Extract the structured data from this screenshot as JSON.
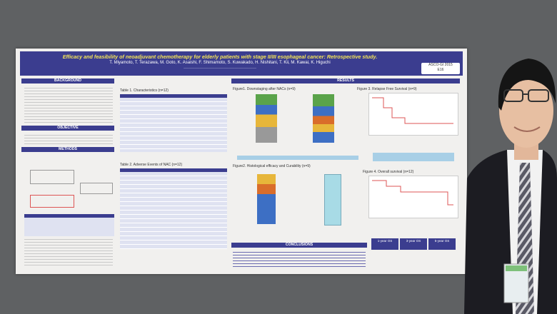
{
  "poster": {
    "title": "Efficacy and feasibility of neoadjuvant chemotherapy for elderly patients with stage II/III esophageal cancer: Retrospective study.",
    "authors": "T. Miyamoto, T. Terazawa, M. Goto, K. Asaishi, F. Shimamoto, S. Kuwakado, H. Nishitani, T. Kii, M. Kawai, K. Higuchi",
    "badge": [
      "ASCO-GI 2015",
      "E16"
    ],
    "sections": {
      "background": "BACKGROUND",
      "objective": "OBJECTIVE",
      "methods": "METHODS",
      "results": "RESULTS",
      "conclusions": "CONCLUSIONS"
    },
    "captions": {
      "table1": "Table 1. Characteristics (n=12)",
      "table2": "Table 2. Adverse Events of NAC (n=12)",
      "fig1": "Figure1. Downstaging after NACs (n=9)",
      "fig2": "Figure2. Histological efficacy and Curability (n=9)",
      "fig3": "Figure 3. Relapse Free Survival (n=9)",
      "fig4": "Figure 4. Overall survival (n=12)"
    },
    "os_headers": [
      "1-year OS",
      "3-year OS",
      "5-year OS"
    ]
  }
}
